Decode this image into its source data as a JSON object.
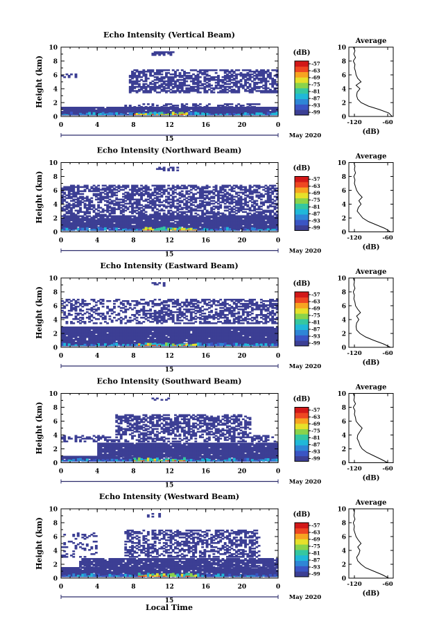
{
  "figure": {
    "xlabel": "Local Time",
    "date_label": "May 2020",
    "day_label": "15",
    "colorbar_unit": "(dB)",
    "average_title": "Average",
    "average_xlabel": "(dB)"
  },
  "colors": {
    "colormap": [
      "#3c3f94",
      "#3a55c4",
      "#2e86d6",
      "#20b8d8",
      "#35c7a0",
      "#8ad34a",
      "#e6e02a",
      "#f7a421",
      "#ee4722",
      "#d21818"
    ],
    "background": "#ffffff",
    "echo_base": "#3c3f94"
  },
  "chart_data": [
    {
      "type": "heatmap",
      "title": "Echo Intensity (Vertical Beam)",
      "ylabel": "Height (km)",
      "x_ticks": [
        "0",
        "4",
        "8",
        "12",
        "16",
        "20",
        "0"
      ],
      "y_ticks": [
        "0",
        "2",
        "4",
        "6",
        "8",
        "10"
      ],
      "xlim": [
        0,
        24
      ],
      "ylim": [
        0,
        10
      ],
      "colorbar": {
        "unit": "(dB)",
        "ticks": [
          "-57",
          "-63",
          "-69",
          "-75",
          "-81",
          "-87",
          "-93",
          "-99"
        ],
        "range": [
          -99,
          -57
        ]
      },
      "layers": [
        {
          "t0": 0,
          "t1": 24,
          "h0": 0.2,
          "h1": 1.3,
          "density": 0.98
        },
        {
          "t0": 7,
          "t1": 22,
          "h0": 1.3,
          "h1": 1.8,
          "density": 0.45
        },
        {
          "t0": 7.5,
          "t1": 24,
          "h0": 3.4,
          "h1": 6.8,
          "density": 0.62
        },
        {
          "t0": 10,
          "t1": 12.5,
          "h0": 8.8,
          "h1": 9.4,
          "density": 0.6
        },
        {
          "t0": 0,
          "t1": 2,
          "h0": 5.6,
          "h1": 6.2,
          "density": 0.4
        }
      ],
      "hot_core": {
        "t0": 8,
        "t1": 14,
        "h0": 0.2,
        "h1": 0.7
      },
      "average": {
        "xlabel": "(dB)",
        "x_ticks": [
          "-120",
          "-60"
        ],
        "xlim": [
          -130,
          -50
        ],
        "height": [
          0,
          0.5,
          1,
          1.5,
          2,
          2.5,
          3,
          3.5,
          4,
          4.5,
          5,
          5.5,
          6,
          6.5,
          7,
          7.5,
          8,
          8.5,
          9,
          9.5,
          10
        ],
        "db": [
          -52,
          -58,
          -75,
          -95,
          -108,
          -114,
          -116,
          -115,
          -110,
          -117,
          -108,
          -114,
          -117,
          -118,
          -120,
          -119,
          -122,
          -118,
          -121,
          -119,
          -122
        ]
      }
    },
    {
      "type": "heatmap",
      "title": "Echo Intensity (Northward Beam)",
      "ylabel": "Height (km)",
      "x_ticks": [
        "0",
        "4",
        "8",
        "12",
        "16",
        "20",
        "0"
      ],
      "y_ticks": [
        "0",
        "2",
        "4",
        "6",
        "8",
        "10"
      ],
      "xlim": [
        0,
        24
      ],
      "ylim": [
        0,
        10
      ],
      "colorbar": {
        "unit": "(dB)",
        "ticks": [
          "-57",
          "-63",
          "-69",
          "-75",
          "-81",
          "-87",
          "-93",
          "-99"
        ],
        "range": [
          -99,
          -57
        ]
      },
      "layers": [
        {
          "t0": 0,
          "t1": 24,
          "h0": 0.2,
          "h1": 2.4,
          "density": 0.96
        },
        {
          "t0": 0,
          "t1": 24,
          "h0": 2.4,
          "h1": 3.4,
          "density": 0.55
        },
        {
          "t0": 0,
          "t1": 24,
          "h0": 3.4,
          "h1": 6.8,
          "density": 0.6
        },
        {
          "t0": 10.5,
          "t1": 13,
          "h0": 8.8,
          "h1": 9.4,
          "density": 0.5
        }
      ],
      "hot_core": {
        "t0": 9,
        "t1": 15,
        "h0": 0.2,
        "h1": 0.8
      },
      "average": {
        "xlabel": "(dB)",
        "x_ticks": [
          "-120",
          "-60"
        ],
        "xlim": [
          -130,
          -50
        ],
        "height": [
          0,
          0.5,
          1,
          1.5,
          2,
          2.5,
          3,
          3.5,
          4,
          4.5,
          5,
          5.5,
          6,
          6.5,
          7,
          7.5,
          8,
          8.5,
          9,
          9.5,
          10
        ],
        "db": [
          -55,
          -65,
          -80,
          -95,
          -105,
          -110,
          -115,
          -113,
          -108,
          -112,
          -106,
          -112,
          -116,
          -118,
          -120,
          -119,
          -121,
          -118,
          -120,
          -119,
          -121
        ]
      }
    },
    {
      "type": "heatmap",
      "title": "Echo Intensity (Eastward Beam)",
      "ylabel": "Height (km)",
      "x_ticks": [
        "0",
        "4",
        "8",
        "12",
        "16",
        "20",
        "0"
      ],
      "y_ticks": [
        "0",
        "2",
        "4",
        "6",
        "8",
        "10"
      ],
      "xlim": [
        0,
        24
      ],
      "ylim": [
        0,
        10
      ],
      "colorbar": {
        "unit": "(dB)",
        "ticks": [
          "-57",
          "-63",
          "-69",
          "-75",
          "-81",
          "-87",
          "-93",
          "-99"
        ],
        "range": [
          -99,
          -57
        ]
      },
      "layers": [
        {
          "t0": 0,
          "t1": 24,
          "h0": 0.2,
          "h1": 3.0,
          "density": 0.97
        },
        {
          "t0": 0,
          "t1": 9,
          "h0": 3.4,
          "h1": 7.0,
          "density": 0.4
        },
        {
          "t0": 9,
          "t1": 24,
          "h0": 3.4,
          "h1": 7.0,
          "density": 0.55
        },
        {
          "t0": 10,
          "t1": 11.5,
          "h0": 8.8,
          "h1": 9.3,
          "density": 0.55
        }
      ],
      "hot_core": {
        "t0": 8.5,
        "t1": 15,
        "h0": 0.2,
        "h1": 0.7
      },
      "average": {
        "xlabel": "(dB)",
        "x_ticks": [
          "-120",
          "-60"
        ],
        "xlim": [
          -130,
          -50
        ],
        "height": [
          0,
          0.5,
          1,
          1.5,
          2,
          2.5,
          3,
          3.5,
          4,
          4.5,
          5,
          5.5,
          6,
          6.5,
          7,
          7.5,
          8,
          8.5,
          9,
          9.5,
          10
        ],
        "db": [
          -55,
          -68,
          -85,
          -100,
          -110,
          -116,
          -117,
          -116,
          -112,
          -116,
          -109,
          -114,
          -118,
          -119,
          -121,
          -120,
          -122,
          -119,
          -121,
          -120,
          -122
        ]
      }
    },
    {
      "type": "heatmap",
      "title": "Echo Intensity (Southward Beam)",
      "ylabel": "Height (km)",
      "x_ticks": [
        "0",
        "4",
        "8",
        "12",
        "16",
        "20",
        "0"
      ],
      "y_ticks": [
        "0",
        "2",
        "4",
        "6",
        "8",
        "10"
      ],
      "xlim": [
        0,
        24
      ],
      "ylim": [
        0,
        10
      ],
      "colorbar": {
        "unit": "(dB)",
        "ticks": [
          "-57",
          "-63",
          "-69",
          "-75",
          "-81",
          "-87",
          "-93",
          "-99"
        ],
        "range": [
          -99,
          -57
        ]
      },
      "layers": [
        {
          "t0": 0,
          "t1": 24,
          "h0": 0.2,
          "h1": 0.9,
          "density": 0.95
        },
        {
          "t0": 4,
          "t1": 24,
          "h0": 0.9,
          "h1": 2.9,
          "density": 0.96
        },
        {
          "t0": 0,
          "t1": 24,
          "h0": 3.0,
          "h1": 4.0,
          "density": 0.45
        },
        {
          "t0": 6,
          "t1": 21,
          "h0": 4.0,
          "h1": 7.0,
          "density": 0.6
        },
        {
          "t0": 10,
          "t1": 12,
          "h0": 9.0,
          "h1": 9.4,
          "density": 0.5
        }
      ],
      "hot_core": {
        "t0": 8,
        "t1": 14,
        "h0": 0.2,
        "h1": 0.8
      },
      "average": {
        "xlabel": "(dB)",
        "x_ticks": [
          "-120",
          "-60"
        ],
        "xlim": [
          -130,
          -50
        ],
        "height": [
          0,
          0.5,
          1,
          1.5,
          2,
          2.5,
          3,
          3.5,
          4,
          4.5,
          5,
          5.5,
          6,
          6.5,
          7,
          7.5,
          8,
          8.5,
          9,
          9.5,
          10
        ],
        "db": [
          -60,
          -72,
          -85,
          -98,
          -106,
          -110,
          -112,
          -115,
          -114,
          -110,
          -106,
          -112,
          -117,
          -118,
          -120,
          -119,
          -122,
          -118,
          -121,
          -120,
          -122
        ]
      }
    },
    {
      "type": "heatmap",
      "title": "Echo Intensity (Westward Beam)",
      "ylabel": "Height (km)",
      "x_ticks": [
        "0",
        "4",
        "8",
        "12",
        "16",
        "20",
        "0"
      ],
      "y_ticks": [
        "0",
        "2",
        "4",
        "6",
        "8",
        "10"
      ],
      "xlim": [
        0,
        24
      ],
      "ylim": [
        0,
        10
      ],
      "colorbar": {
        "unit": "(dB)",
        "ticks": [
          "-57",
          "-63",
          "-69",
          "-75",
          "-81",
          "-87",
          "-93",
          "-99"
        ],
        "range": [
          -99,
          -57
        ]
      },
      "layers": [
        {
          "t0": 0,
          "t1": 24,
          "h0": 0.2,
          "h1": 1.5,
          "density": 0.96
        },
        {
          "t0": 2,
          "t1": 24,
          "h0": 1.5,
          "h1": 2.8,
          "density": 0.9
        },
        {
          "t0": 7,
          "t1": 22,
          "h0": 3.0,
          "h1": 7.0,
          "density": 0.5
        },
        {
          "t0": 0,
          "t1": 4,
          "h0": 3.0,
          "h1": 6.5,
          "density": 0.22
        },
        {
          "t0": 9.5,
          "t1": 11,
          "h0": 8.8,
          "h1": 9.4,
          "density": 0.45
        }
      ],
      "hot_core": {
        "t0": 8.5,
        "t1": 15,
        "h0": 0.2,
        "h1": 0.8
      },
      "average": {
        "xlabel": "(dB)",
        "x_ticks": [
          "-120",
          "-60"
        ],
        "xlim": [
          -130,
          -50
        ],
        "height": [
          0,
          0.5,
          1,
          1.5,
          2,
          2.5,
          3,
          3.5,
          4,
          4.5,
          5,
          5.5,
          6,
          6.5,
          7,
          7.5,
          8,
          8.5,
          9,
          9.5,
          10
        ],
        "db": [
          -58,
          -70,
          -85,
          -100,
          -108,
          -114,
          -116,
          -112,
          -110,
          -114,
          -108,
          -113,
          -117,
          -119,
          -121,
          -120,
          -122,
          -119,
          -121,
          -120,
          -122
        ]
      }
    }
  ]
}
